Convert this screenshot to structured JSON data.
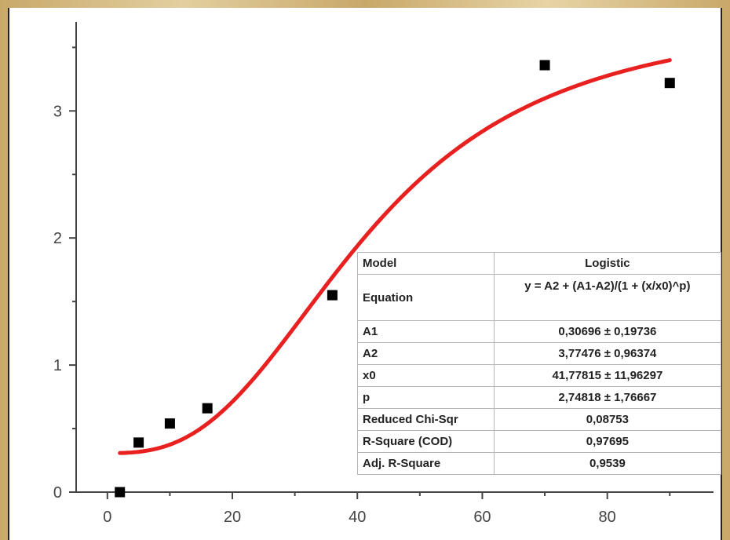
{
  "chart_data": {
    "type": "scatter",
    "xlim": [
      -5,
      97
    ],
    "ylim": [
      0,
      3.7
    ],
    "x_ticks": [
      0,
      20,
      40,
      60,
      80
    ],
    "y_ticks": [
      0,
      1,
      2,
      3
    ],
    "points": [
      {
        "x": 2,
        "y": 0.0
      },
      {
        "x": 5,
        "y": 0.39
      },
      {
        "x": 10,
        "y": 0.54
      },
      {
        "x": 16,
        "y": 0.66
      },
      {
        "x": 36,
        "y": 1.55
      },
      {
        "x": 70,
        "y": 3.36
      },
      {
        "x": 90,
        "y": 3.22
      }
    ],
    "fit": {
      "model": "Logistic",
      "x_range": [
        2,
        90
      ],
      "A1": 0.30696,
      "A2": 3.77476,
      "x0": 41.77815,
      "p": 2.74818,
      "color": "#e8201f"
    },
    "marker_color": "#000000"
  },
  "stats_table": {
    "rows": [
      {
        "label": "Model",
        "value": "Logistic"
      },
      {
        "label": "Equation",
        "value": "y = A2 + (A1-A2)/(1 + (x/x0)^p)"
      },
      {
        "label": "A1",
        "value": "0,30696 ± 0,19736"
      },
      {
        "label": "A2",
        "value": "3,77476 ± 0,96374"
      },
      {
        "label": "x0",
        "value": "41,77815 ± 11,96297"
      },
      {
        "label": "p",
        "value": "2,74818 ± 1,76667"
      },
      {
        "label": "Reduced Chi-Sqr",
        "value": "0,08753"
      },
      {
        "label": "R-Square (COD)",
        "value": "0,97695"
      },
      {
        "label": "Adj. R-Square",
        "value": "0,9539"
      }
    ]
  }
}
